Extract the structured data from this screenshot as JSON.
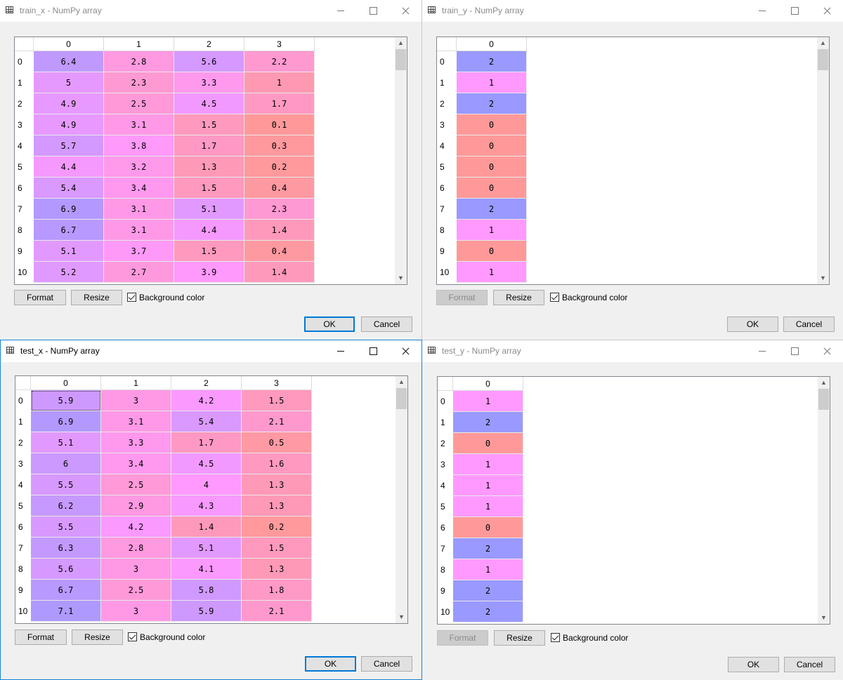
{
  "colors": {
    "v0": "#ff9999",
    "v1": "#ff99ff",
    "v2": "#9999ff",
    "selection_focus": "#333333",
    "ok_border": "#0078d7"
  },
  "common": {
    "format_label": "Format",
    "resize_label": "Resize",
    "bgcolor_label": "Background color",
    "ok_label": "OK",
    "cancel_label": "Cancel",
    "row_labels": [
      "0",
      "1",
      "2",
      "3",
      "4",
      "5",
      "6",
      "7",
      "8",
      "9",
      "10"
    ]
  },
  "windows": [
    {
      "id": "train_x",
      "title": "train_x - NumPy array",
      "active": false,
      "format_disabled": false,
      "columns": [
        "0",
        "1",
        "2",
        "3"
      ],
      "rows": [
        [
          "6.4",
          "2.8",
          "5.6",
          "2.2"
        ],
        [
          "5",
          "2.3",
          "3.3",
          "1"
        ],
        [
          "4.9",
          "2.5",
          "4.5",
          "1.7"
        ],
        [
          "4.9",
          "3.1",
          "1.5",
          "0.1"
        ],
        [
          "5.7",
          "3.8",
          "1.7",
          "0.3"
        ],
        [
          "4.4",
          "3.2",
          "1.3",
          "0.2"
        ],
        [
          "5.4",
          "3.4",
          "1.5",
          "0.4"
        ],
        [
          "6.9",
          "3.1",
          "5.1",
          "2.3"
        ],
        [
          "6.7",
          "3.1",
          "4.4",
          "1.4"
        ],
        [
          "5.1",
          "3.7",
          "1.5",
          "0.4"
        ],
        [
          "5.2",
          "2.7",
          "3.9",
          "1.4"
        ]
      ],
      "scroll_fraction": 0.0,
      "value_min": 0.1,
      "value_max": 7.9
    },
    {
      "id": "train_y",
      "title": "train_y - NumPy array",
      "active": false,
      "format_disabled": true,
      "columns": [
        "0"
      ],
      "rows": [
        [
          "2"
        ],
        [
          "1"
        ],
        [
          "2"
        ],
        [
          "0"
        ],
        [
          "0"
        ],
        [
          "0"
        ],
        [
          "0"
        ],
        [
          "2"
        ],
        [
          "1"
        ],
        [
          "0"
        ],
        [
          "1"
        ]
      ],
      "scroll_fraction": 0.0,
      "value_min": 0,
      "value_max": 2
    },
    {
      "id": "test_x",
      "title": "test_x - NumPy array",
      "active": true,
      "format_disabled": false,
      "columns": [
        "0",
        "1",
        "2",
        "3"
      ],
      "rows": [
        [
          "5.9",
          "3",
          "4.2",
          "1.5"
        ],
        [
          "6.9",
          "3.1",
          "5.4",
          "2.1"
        ],
        [
          "5.1",
          "3.3",
          "1.7",
          "0.5"
        ],
        [
          "6",
          "3.4",
          "4.5",
          "1.6"
        ],
        [
          "5.5",
          "2.5",
          "4",
          "1.3"
        ],
        [
          "6.2",
          "2.9",
          "4.3",
          "1.3"
        ],
        [
          "5.5",
          "4.2",
          "1.4",
          "0.2"
        ],
        [
          "6.3",
          "2.8",
          "5.1",
          "1.5"
        ],
        [
          "5.6",
          "3",
          "4.1",
          "1.3"
        ],
        [
          "6.7",
          "2.5",
          "5.8",
          "1.8"
        ],
        [
          "7.1",
          "3",
          "5.9",
          "2.1"
        ]
      ],
      "scroll_fraction": 0.0,
      "value_min": 0.1,
      "value_max": 7.9
    },
    {
      "id": "test_y",
      "title": "test_y - NumPy array",
      "active": false,
      "format_disabled": true,
      "columns": [
        "0"
      ],
      "rows": [
        [
          "1"
        ],
        [
          "2"
        ],
        [
          "0"
        ],
        [
          "1"
        ],
        [
          "1"
        ],
        [
          "1"
        ],
        [
          "0"
        ],
        [
          "2"
        ],
        [
          "1"
        ],
        [
          "2"
        ],
        [
          "2"
        ]
      ],
      "scroll_fraction": 0.0,
      "value_min": 0,
      "value_max": 2
    }
  ]
}
